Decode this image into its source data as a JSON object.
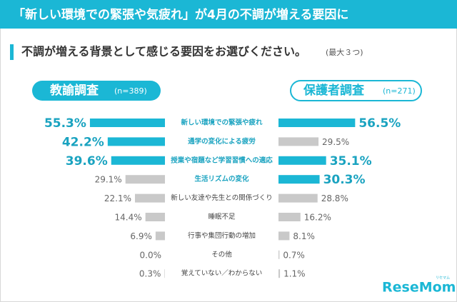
{
  "header": {
    "title": "「新しい環境での緊張や気疲れ」が4月の不調が増える要因に"
  },
  "question": {
    "text": "不調が増える背景として感じる要因をお選びください。",
    "note": "(最大３つ)"
  },
  "chart_data": {
    "type": "butterfly-bar",
    "categories": [
      "新しい環境での緊張や疲れ",
      "通学の変化による疲労",
      "授業や宿題など学習習慣への適応",
      "生活リズムの変化",
      "新しい友達や先生との関係づくり",
      "睡眠不足",
      "行事や集団行動の増加",
      "その他",
      "覚えていない／わからない"
    ],
    "series": [
      {
        "name": "教諭調査",
        "sample": "(n=389)",
        "side": "left",
        "values": [
          55.3,
          42.2,
          39.6,
          29.1,
          22.1,
          14.4,
          6.9,
          0,
          0.3
        ],
        "value_labels": [
          "55.3%",
          "42.2%",
          "39.6%",
          "29.1%",
          "22.1%",
          "14.4%",
          "6.9%",
          "0.0%",
          "0.3%"
        ],
        "colors": [
          "#1bb7d5",
          "#1bb7d5",
          "#1bb7d5",
          "#c9c9c9",
          "#c9c9c9",
          "#c9c9c9",
          "#c9c9c9",
          "#c9c9c9",
          "#c9c9c9"
        ]
      },
      {
        "name": "保護者調査",
        "sample": "(n=271)",
        "side": "right",
        "values": [
          56.5,
          29.5,
          35.1,
          30.3,
          28.8,
          16.2,
          8.1,
          0.7,
          1.1
        ],
        "value_labels": [
          "56.5%",
          "29.5%",
          "35.1%",
          "30.3%",
          "28.8%",
          "16.2%",
          "8.1%",
          "0.7%",
          "1.1%"
        ],
        "colors": [
          "#1bb7d5",
          "#c9c9c9",
          "#1bb7d5",
          "#1bb7d5",
          "#c9c9c9",
          "#c9c9c9",
          "#c9c9c9",
          "#c9c9c9",
          "#c9c9c9"
        ]
      }
    ]
  },
  "logo": {
    "text": "ReseMom",
    "ruby": "リセマム"
  }
}
